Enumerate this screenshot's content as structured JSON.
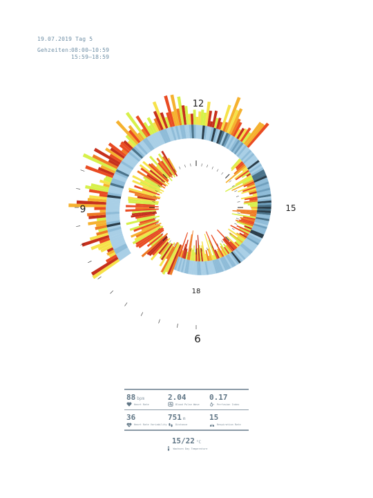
{
  "header": {
    "date_line": "19.07.2019 Tag 5",
    "hours_label": "Gehzeiten:",
    "hours_1": "08:00–10:59",
    "hours_2": "15:59–18:59"
  },
  "chart_data": {
    "type": "radial-spiral",
    "clock_labels": [
      "12",
      "15",
      "18",
      "6",
      "9"
    ],
    "colors": {
      "outer_ring": [
        "#a9cfe6",
        "#8fbcd8",
        "#6f9fbd",
        "#4a7289",
        "#2b3e4a"
      ],
      "activity": [
        "#d7f04a",
        "#f6e24a",
        "#f5b12f",
        "#ef7a23",
        "#e94b22",
        "#c62f1c"
      ]
    }
  },
  "stats": {
    "heart_rate": {
      "value": "88",
      "unit": "bpm",
      "label": "Heart Rate",
      "icon": "heart-icon"
    },
    "blood_pulse_wave": {
      "value": "2.04",
      "unit": "",
      "label": "Blood Pulse Wave",
      "icon": "pulse-wave-icon"
    },
    "perfusion_index": {
      "value": "0.17",
      "unit": "",
      "label": "Perfusion Index",
      "icon": "drop-icon"
    },
    "hrv": {
      "value": "36",
      "unit": "",
      "label": "Heart Rate Variability",
      "icon": "heart-variability-icon"
    },
    "distance": {
      "value": "751",
      "unit": "m",
      "label": "Distance",
      "icon": "footsteps-icon"
    },
    "respiration": {
      "value": "15",
      "unit": "",
      "label": "Respiration Rate",
      "icon": "lungs-icon"
    },
    "temperature": {
      "value": "15/22",
      "unit": "°C",
      "label": "Wachsen Day Temperature",
      "icon": "thermometer-icon"
    }
  }
}
